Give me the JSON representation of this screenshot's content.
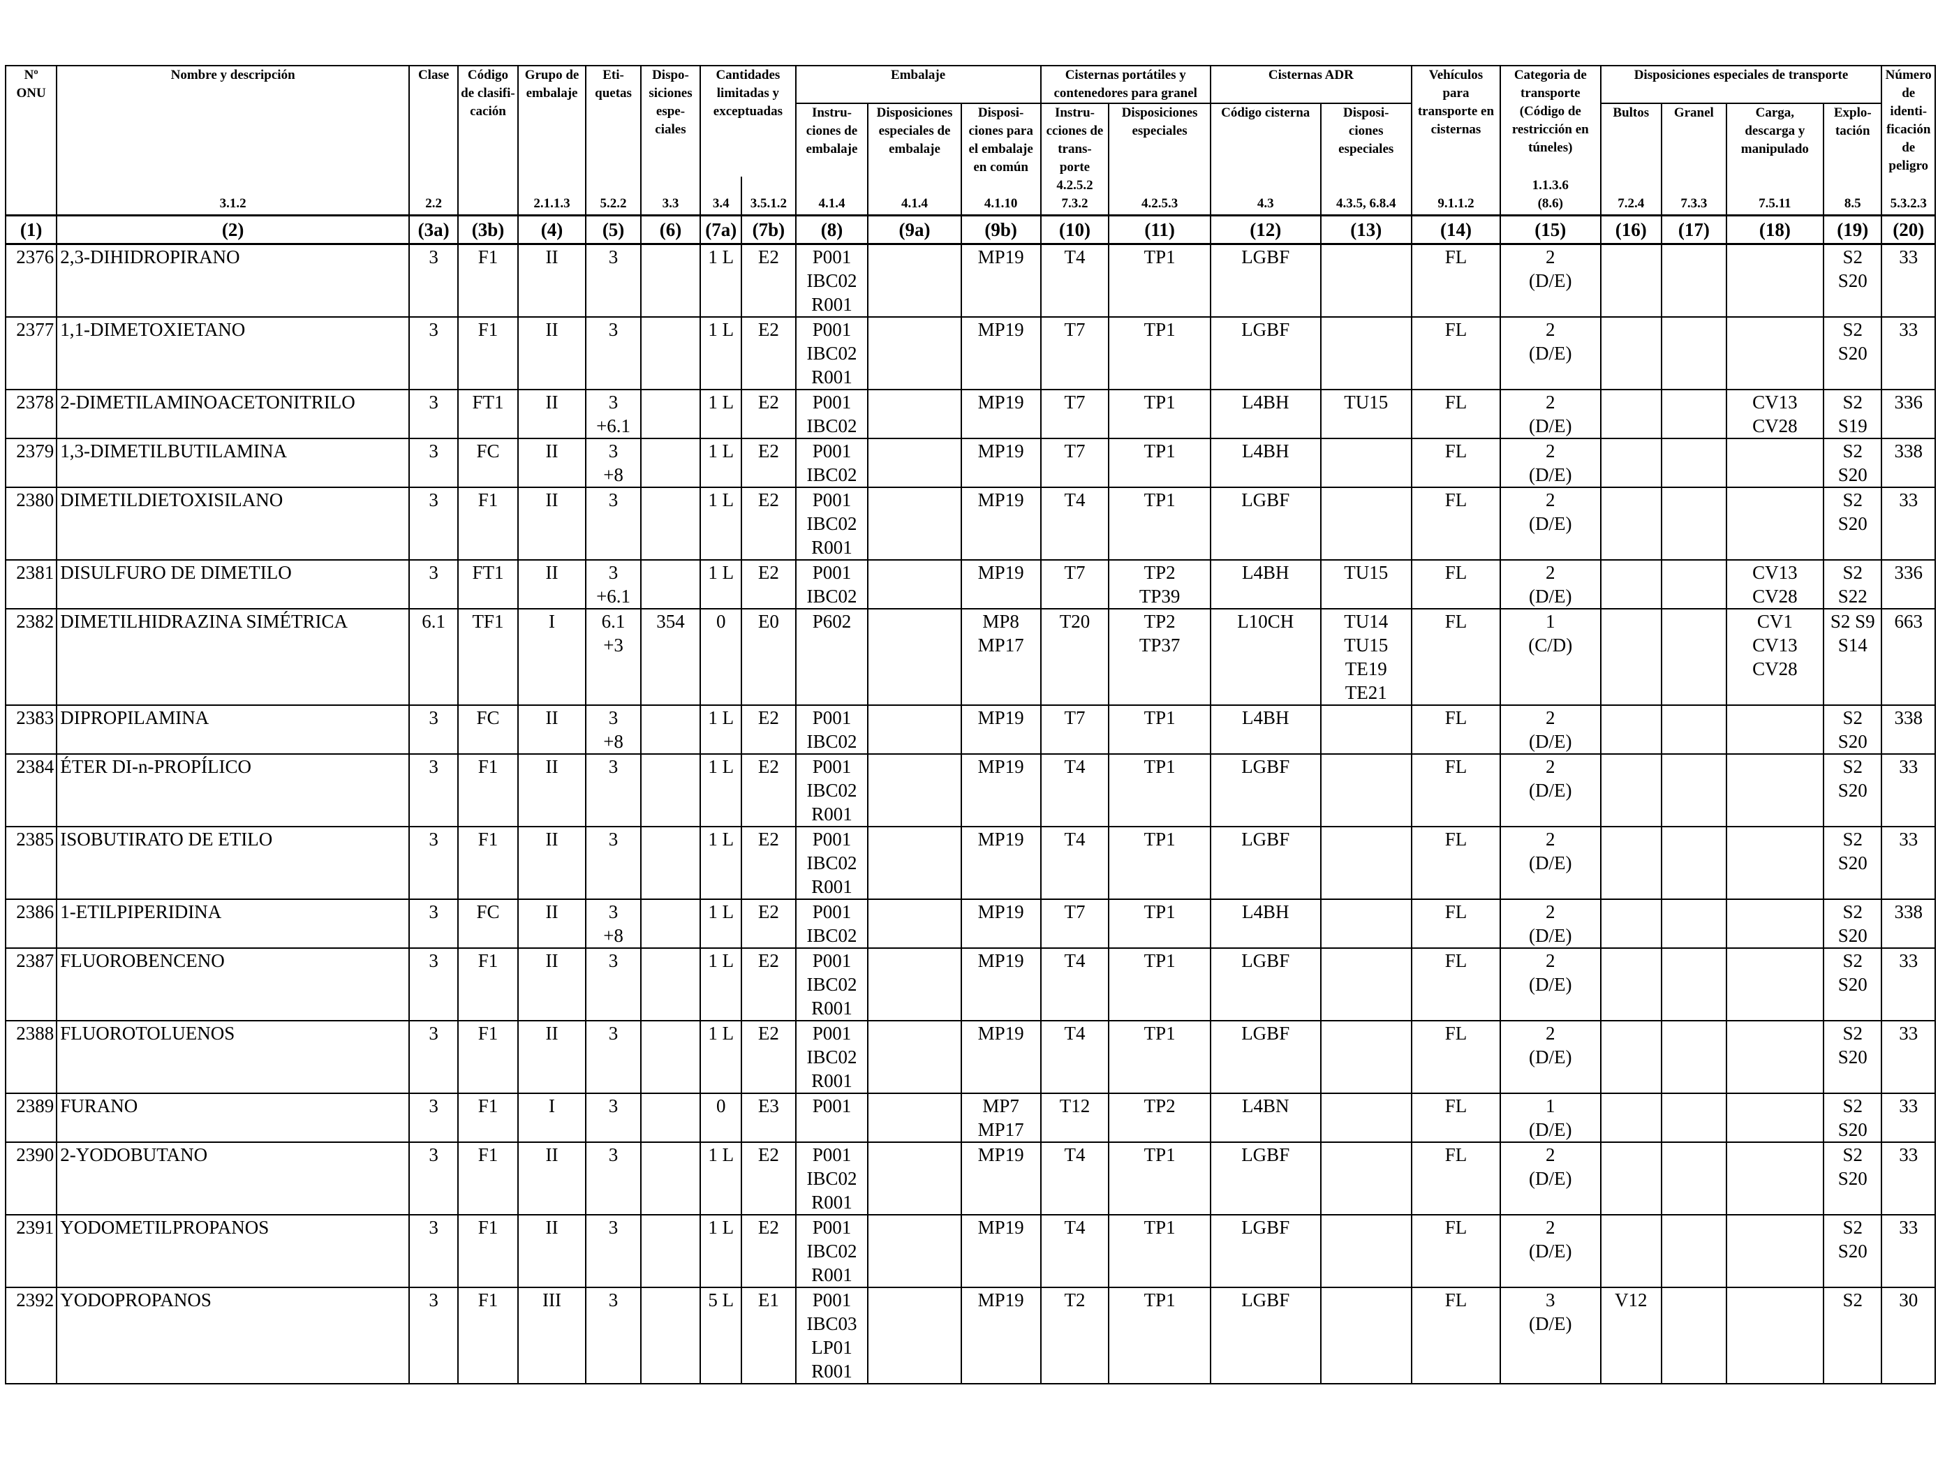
{
  "headers": {
    "onu": "Nº\nONU",
    "nombre": "Nombre y descripción",
    "clase": "Clase",
    "codigo_clasif": "Código\nde clasifi-\ncación",
    "grupo_embalaje": "Grupo de\nembalaje",
    "etiquetas": "Eti-\nquetas",
    "disposiciones_especiales": "Dispo-\nsiciones\nespe-\nciales",
    "cantidades": "Cantidades\nlimitadas y\nexceptuadas",
    "embalaje": "Embalaje",
    "instrucciones_embalaje": "Instru-\nciones de\nembalaje",
    "disp_esp_embalaje": "Disposiciones\nespeciales de\nembalaje",
    "disp_embalaje_comun": "Disposi-\nciones para\nel embalaje\nen común",
    "cisternas_portatiles": "Cisternas portátiles y\ncontenedores para granel",
    "instrucciones_transporte": "Instru-\ncciones de\ntrans-\nporte",
    "disposiciones_esp_cisterna": "Disposiciones\nespeciales",
    "cisternas_adr": "Cisternas ADR",
    "codigo_cisterna": "Código cisterna",
    "disp_esp_adr": "Disposi-\nciones\nespeciales",
    "vehiculos": "Vehículos\npara\ntransporte en\ncisternas",
    "categoria": "Categoria de\ntransporte\n(Código de\nrestricción en\ntúneles)",
    "disp_esp_transporte": "Disposiciones especiales de transporte",
    "bultos": "Bultos",
    "granel": "Granel",
    "carga": "Carga,\ndescarga y\nmanipulado",
    "explotacion": "Explo-\ntación",
    "numero_peligro": "Número\nde identi-\nficación\nde peligro"
  },
  "refs": [
    "",
    "3.1.2",
    "2.2",
    "",
    "2.1.1.3",
    "5.2.2",
    "3.3",
    "3.4",
    "3.5.1.2",
    "4.1.4",
    "4.1.4",
    "4.1.10",
    "4.2.5.2\n7.3.2",
    "4.2.5.3",
    "4.3",
    "4.3.5, 6.8.4",
    "9.1.1.2",
    "1.1.3.6\n(8.6)",
    "7.2.4",
    "7.3.3",
    "7.5.11",
    "8.5",
    "5.3.2.3"
  ],
  "col_numbers": [
    "(1)",
    "(2)",
    "(3a)",
    "(3b)",
    "(4)",
    "(5)",
    "(6)",
    "(7a)",
    "(7b)",
    "(8)",
    "(9a)",
    "(9b)",
    "(10)",
    "(11)",
    "(12)",
    "(13)",
    "(14)",
    "(15)",
    "(16)",
    "(17)",
    "(18)",
    "(19)",
    "(20)"
  ],
  "rows": [
    {
      "onu": "2376",
      "name": "2,3-DIHIDROPIRANO",
      "clase": "3",
      "cod": "F1",
      "grupo": "II",
      "etiq": "3",
      "disp": "",
      "lq": "1 L",
      "eq": "E2",
      "instr": "P001\nIBC02\nR001",
      "dee": "",
      "mp": "MP19",
      "tport": "T4",
      "tp": "TP1",
      "cist": "LGBF",
      "tu": "",
      "veh": "FL",
      "cat": "2\n(D/E)",
      "bultos": "",
      "granel": "",
      "cv": "",
      "s": "S2\nS20",
      "hin": "33"
    },
    {
      "onu": "2377",
      "name": "1,1-DIMETOXIETANO",
      "clase": "3",
      "cod": "F1",
      "grupo": "II",
      "etiq": "3",
      "disp": "",
      "lq": "1 L",
      "eq": "E2",
      "instr": "P001\nIBC02\nR001",
      "dee": "",
      "mp": "MP19",
      "tport": "T7",
      "tp": "TP1",
      "cist": "LGBF",
      "tu": "",
      "veh": "FL",
      "cat": "2\n(D/E)",
      "bultos": "",
      "granel": "",
      "cv": "",
      "s": "S2\nS20",
      "hin": "33"
    },
    {
      "onu": "2378",
      "name": "2-DIMETILAMINOACETONITRILO",
      "clase": "3",
      "cod": "FT1",
      "grupo": "II",
      "etiq": "3\n+6.1",
      "disp": "",
      "lq": "1 L",
      "eq": "E2",
      "instr": "P001\nIBC02",
      "dee": "",
      "mp": "MP19",
      "tport": "T7",
      "tp": "TP1",
      "cist": "L4BH",
      "tu": "TU15",
      "veh": "FL",
      "cat": "2\n(D/E)",
      "bultos": "",
      "granel": "",
      "cv": "CV13\nCV28",
      "s": "S2\nS19",
      "hin": "336"
    },
    {
      "onu": "2379",
      "name": "1,3-DIMETILBUTILAMINA",
      "clase": "3",
      "cod": "FC",
      "grupo": "II",
      "etiq": "3\n+8",
      "disp": "",
      "lq": "1 L",
      "eq": "E2",
      "instr": "P001\nIBC02",
      "dee": "",
      "mp": "MP19",
      "tport": "T7",
      "tp": "TP1",
      "cist": "L4BH",
      "tu": "",
      "veh": "FL",
      "cat": "2\n(D/E)",
      "bultos": "",
      "granel": "",
      "cv": "",
      "s": "S2\nS20",
      "hin": "338"
    },
    {
      "onu": "2380",
      "name": "DIMETILDIETOXISILANO",
      "clase": "3",
      "cod": "F1",
      "grupo": "II",
      "etiq": "3",
      "disp": "",
      "lq": "1 L",
      "eq": "E2",
      "instr": "P001\nIBC02\nR001",
      "dee": "",
      "mp": "MP19",
      "tport": "T4",
      "tp": "TP1",
      "cist": "LGBF",
      "tu": "",
      "veh": "FL",
      "cat": "2\n(D/E)",
      "bultos": "",
      "granel": "",
      "cv": "",
      "s": "S2\nS20",
      "hin": "33"
    },
    {
      "onu": "2381",
      "name": "DISULFURO DE DIMETILO",
      "clase": "3",
      "cod": "FT1",
      "grupo": "II",
      "etiq": "3\n+6.1",
      "disp": "",
      "lq": "1 L",
      "eq": "E2",
      "instr": "P001\nIBC02",
      "dee": "",
      "mp": "MP19",
      "tport": "T7",
      "tp": "TP2\nTP39",
      "cist": "L4BH",
      "tu": "TU15",
      "veh": "FL",
      "cat": "2\n(D/E)",
      "bultos": "",
      "granel": "",
      "cv": "CV13\nCV28",
      "s": "S2\nS22",
      "hin": "336"
    },
    {
      "onu": "2382",
      "name": "DIMETILHIDRAZINA SIMÉTRICA",
      "clase": "6.1",
      "cod": "TF1",
      "grupo": "I",
      "etiq": "6.1\n+3",
      "disp": "354",
      "lq": "0",
      "eq": "E0",
      "instr": "P602",
      "dee": "",
      "mp": "MP8\nMP17",
      "tport": "T20",
      "tp": "TP2\nTP37",
      "cist": "L10CH",
      "tu": "TU14\nTU15\nTE19\nTE21",
      "veh": "FL",
      "cat": "1\n(C/D)",
      "bultos": "",
      "granel": "",
      "cv": "CV1\nCV13\nCV28",
      "s": "S2 S9\nS14",
      "hin": "663"
    },
    {
      "onu": "2383",
      "name": "DIPROPILAMINA",
      "clase": "3",
      "cod": "FC",
      "grupo": "II",
      "etiq": "3\n+8",
      "disp": "",
      "lq": "1 L",
      "eq": "E2",
      "instr": "P001\nIBC02",
      "dee": "",
      "mp": "MP19",
      "tport": "T7",
      "tp": "TP1",
      "cist": "L4BH",
      "tu": "",
      "veh": "FL",
      "cat": "2\n(D/E)",
      "bultos": "",
      "granel": "",
      "cv": "",
      "s": "S2\nS20",
      "hin": "338"
    },
    {
      "onu": "2384",
      "name": "ÉTER DI-n-PROPÍLICO",
      "clase": "3",
      "cod": "F1",
      "grupo": "II",
      "etiq": "3",
      "disp": "",
      "lq": "1 L",
      "eq": "E2",
      "instr": "P001\nIBC02\nR001",
      "dee": "",
      "mp": "MP19",
      "tport": "T4",
      "tp": "TP1",
      "cist": "LGBF",
      "tu": "",
      "veh": "FL",
      "cat": "2\n(D/E)",
      "bultos": "",
      "granel": "",
      "cv": "",
      "s": "S2\nS20",
      "hin": "33"
    },
    {
      "onu": "2385",
      "name": "ISOBUTIRATO DE ETILO",
      "clase": "3",
      "cod": "F1",
      "grupo": "II",
      "etiq": "3",
      "disp": "",
      "lq": "1 L",
      "eq": "E2",
      "instr": "P001\nIBC02\nR001",
      "dee": "",
      "mp": "MP19",
      "tport": "T4",
      "tp": "TP1",
      "cist": "LGBF",
      "tu": "",
      "veh": "FL",
      "cat": "2\n(D/E)",
      "bultos": "",
      "granel": "",
      "cv": "",
      "s": "S2\nS20",
      "hin": "33"
    },
    {
      "onu": "2386",
      "name": "1-ETILPIPERIDINA",
      "clase": "3",
      "cod": "FC",
      "grupo": "II",
      "etiq": "3\n+8",
      "disp": "",
      "lq": "1 L",
      "eq": "E2",
      "instr": "P001\nIBC02",
      "dee": "",
      "mp": "MP19",
      "tport": "T7",
      "tp": "TP1",
      "cist": "L4BH",
      "tu": "",
      "veh": "FL",
      "cat": "2\n(D/E)",
      "bultos": "",
      "granel": "",
      "cv": "",
      "s": "S2\nS20",
      "hin": "338"
    },
    {
      "onu": "2387",
      "name": "FLUOROBENCENO",
      "clase": "3",
      "cod": "F1",
      "grupo": "II",
      "etiq": "3",
      "disp": "",
      "lq": "1 L",
      "eq": "E2",
      "instr": "P001\nIBC02\nR001",
      "dee": "",
      "mp": "MP19",
      "tport": "T4",
      "tp": "TP1",
      "cist": "LGBF",
      "tu": "",
      "veh": "FL",
      "cat": "2\n(D/E)",
      "bultos": "",
      "granel": "",
      "cv": "",
      "s": "S2\nS20",
      "hin": "33"
    },
    {
      "onu": "2388",
      "name": "FLUOROTOLUENOS",
      "clase": "3",
      "cod": "F1",
      "grupo": "II",
      "etiq": "3",
      "disp": "",
      "lq": "1 L",
      "eq": "E2",
      "instr": "P001\nIBC02\nR001",
      "dee": "",
      "mp": "MP19",
      "tport": "T4",
      "tp": "TP1",
      "cist": "LGBF",
      "tu": "",
      "veh": "FL",
      "cat": "2\n(D/E)",
      "bultos": "",
      "granel": "",
      "cv": "",
      "s": "S2\nS20",
      "hin": "33"
    },
    {
      "onu": "2389",
      "name": "FURANO",
      "clase": "3",
      "cod": "F1",
      "grupo": "I",
      "etiq": "3",
      "disp": "",
      "lq": "0",
      "eq": "E3",
      "instr": "P001",
      "dee": "",
      "mp": "MP7\nMP17",
      "tport": "T12",
      "tp": "TP2",
      "cist": "L4BN",
      "tu": "",
      "veh": "FL",
      "cat": "1\n(D/E)",
      "bultos": "",
      "granel": "",
      "cv": "",
      "s": "S2\nS20",
      "hin": "33"
    },
    {
      "onu": "2390",
      "name": "2-YODOBUTANO",
      "clase": "3",
      "cod": "F1",
      "grupo": "II",
      "etiq": "3",
      "disp": "",
      "lq": "1 L",
      "eq": "E2",
      "instr": "P001\nIBC02\nR001",
      "dee": "",
      "mp": "MP19",
      "tport": "T4",
      "tp": "TP1",
      "cist": "LGBF",
      "tu": "",
      "veh": "FL",
      "cat": "2\n(D/E)",
      "bultos": "",
      "granel": "",
      "cv": "",
      "s": "S2\nS20",
      "hin": "33"
    },
    {
      "onu": "2391",
      "name": "YODOMETILPROPANOS",
      "clase": "3",
      "cod": "F1",
      "grupo": "II",
      "etiq": "3",
      "disp": "",
      "lq": "1 L",
      "eq": "E2",
      "instr": "P001\nIBC02\nR001",
      "dee": "",
      "mp": "MP19",
      "tport": "T4",
      "tp": "TP1",
      "cist": "LGBF",
      "tu": "",
      "veh": "FL",
      "cat": "2\n(D/E)",
      "bultos": "",
      "granel": "",
      "cv": "",
      "s": "S2\nS20",
      "hin": "33"
    },
    {
      "onu": "2392",
      "name": "YODOPROPANOS",
      "clase": "3",
      "cod": "F1",
      "grupo": "III",
      "etiq": "3",
      "disp": "",
      "lq": "5 L",
      "eq": "E1",
      "instr": "P001\nIBC03\nLP01\nR001",
      "dee": "",
      "mp": "MP19",
      "tport": "T2",
      "tp": "TP1",
      "cist": "LGBF",
      "tu": "",
      "veh": "FL",
      "cat": "3\n(D/E)",
      "bultos": "V12",
      "granel": "",
      "cv": "",
      "s": "S2",
      "hin": "30"
    }
  ]
}
